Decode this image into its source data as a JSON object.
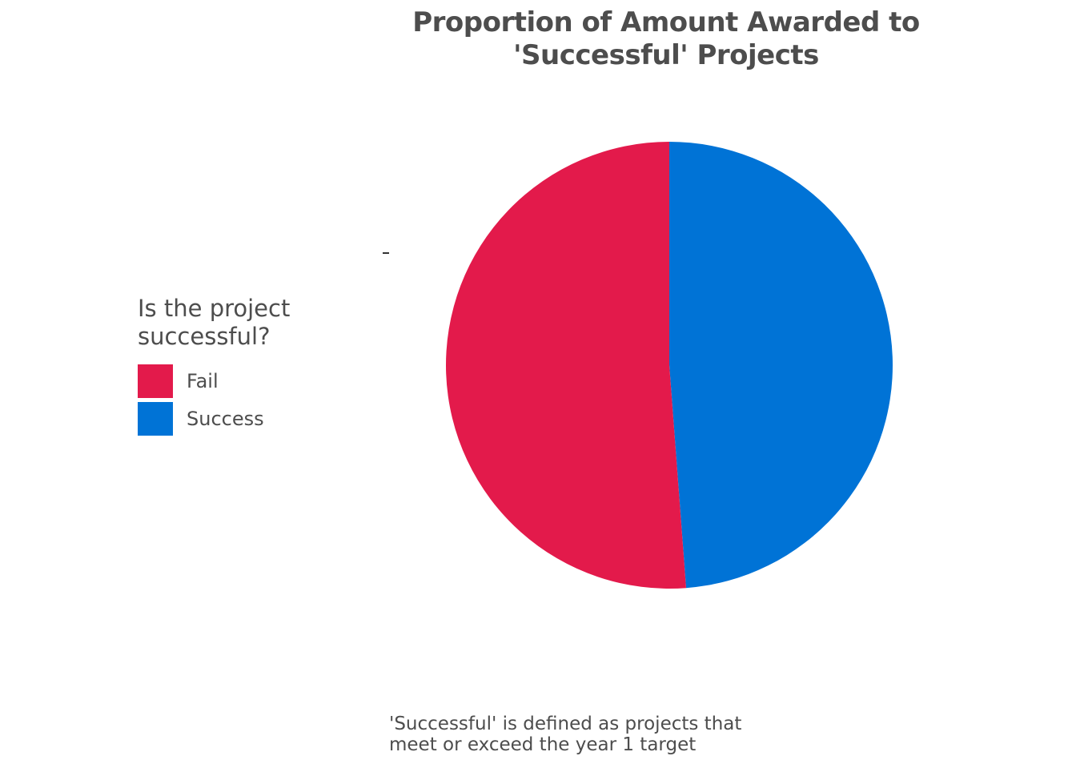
{
  "chart_data": {
    "type": "pie",
    "title_lines": [
      "Proportion of Amount Awarded to",
      "'Successful' Projects"
    ],
    "legend": {
      "title_lines": [
        "Is the project",
        "successful?"
      ],
      "placement": "left"
    },
    "slices": [
      {
        "label": "Fail",
        "value": 0.512,
        "color": "#E31A4B"
      },
      {
        "label": "Success",
        "value": 0.488,
        "color": "#0073D6"
      }
    ],
    "caption_lines": [
      "'Successful' is defined as projects that",
      "meet or exceed the year 1 target"
    ]
  }
}
